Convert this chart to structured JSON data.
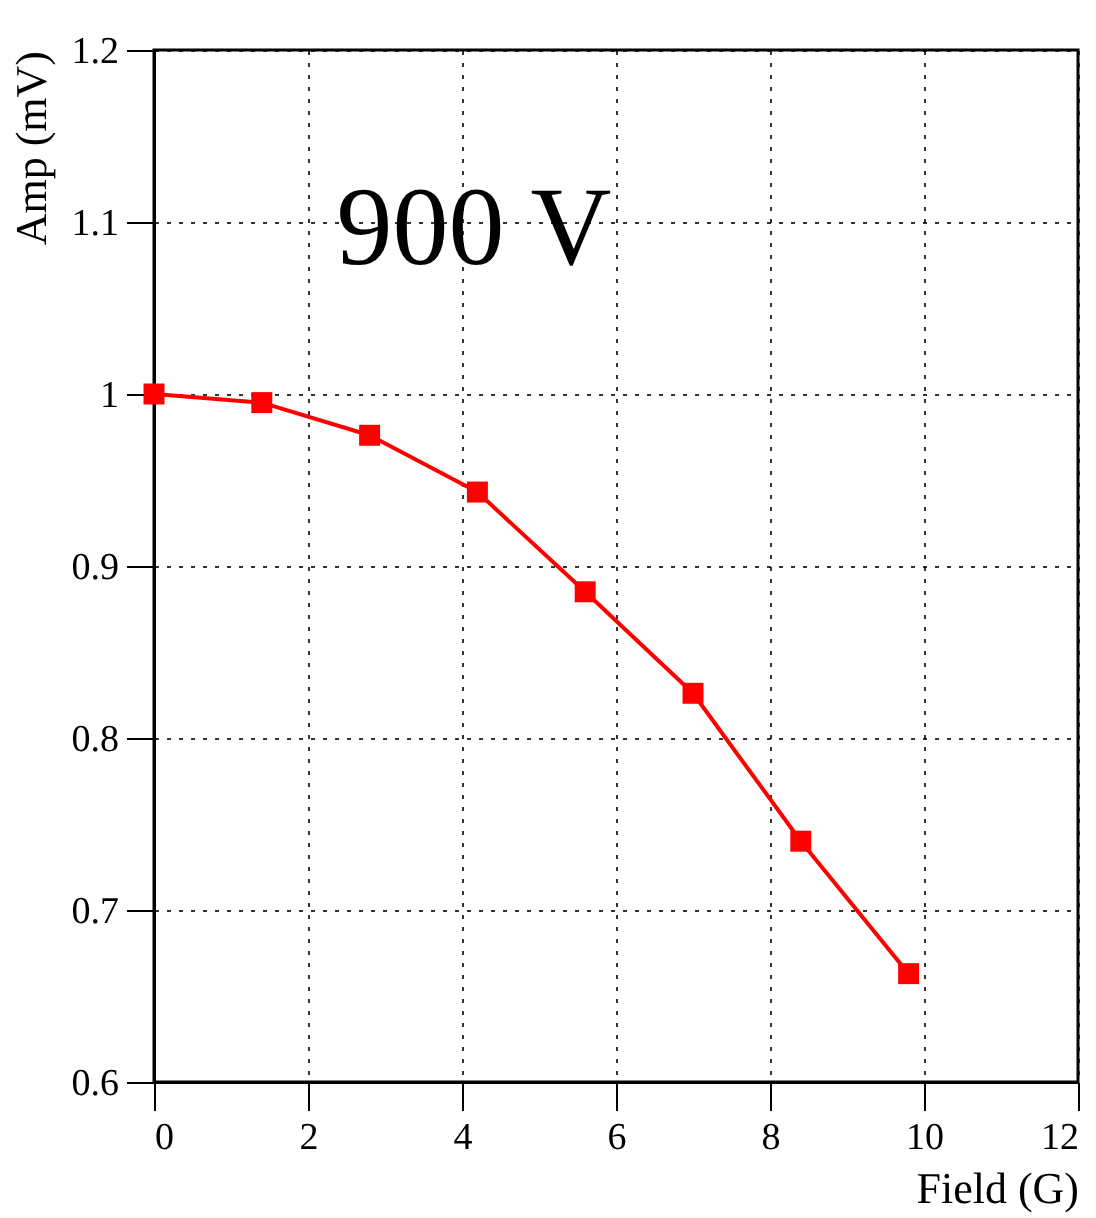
{
  "chart_data": {
    "type": "line",
    "xlabel": "Field (G)",
    "ylabel": "Amp (mV)",
    "annotations": [
      "900 V"
    ],
    "x": [
      0,
      1.4,
      2.8,
      4.2,
      5.6,
      7.0,
      8.4,
      9.8
    ],
    "series": [
      {
        "color": "#ff0000",
        "values": [
          1.0,
          0.995,
          0.976,
          0.943,
          0.885,
          0.826,
          0.74,
          0.663
        ]
      }
    ],
    "xlim": [
      0,
      12
    ],
    "xticks": [
      0,
      2,
      4,
      6,
      8,
      10,
      12
    ],
    "ylim": [
      0.6,
      1.2
    ],
    "yticks": [
      0.6,
      0.7,
      0.8,
      0.9,
      1,
      1.1,
      1.2
    ],
    "grid": true,
    "marker": "square",
    "line_style": "solid"
  }
}
